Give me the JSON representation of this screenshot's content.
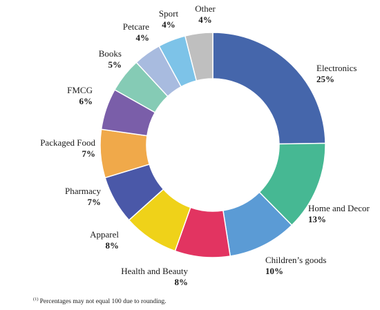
{
  "chart_data": {
    "type": "pie",
    "donut": true,
    "categories": [
      "Electronics",
      "Home and Decor",
      "Children’s goods",
      "Health and Beauty",
      "Apparel",
      "Pharmacy",
      "Packaged Food",
      "FMCG",
      "Books",
      "Petcare",
      "Sport",
      "Other"
    ],
    "values": [
      25,
      13,
      10,
      8,
      8,
      7,
      7,
      6,
      5,
      4,
      4,
      4
    ],
    "value_labels": [
      "25%",
      "13%",
      "10%",
      "8%",
      "8%",
      "7%",
      "7%",
      "6%",
      "5%",
      "4%",
      "4%",
      "4%"
    ],
    "colors": [
      "#4566ab",
      "#46b893",
      "#5b9bd5",
      "#e23461",
      "#efd219",
      "#4a58a8",
      "#f0a94a",
      "#7a5ea9",
      "#85cbb5",
      "#a8bbdf",
      "#7dc3e8",
      "#bfbfbf"
    ]
  },
  "footnote": {
    "marker": "(1)",
    "text": "Percentages may not equal 100 due to rounding."
  }
}
